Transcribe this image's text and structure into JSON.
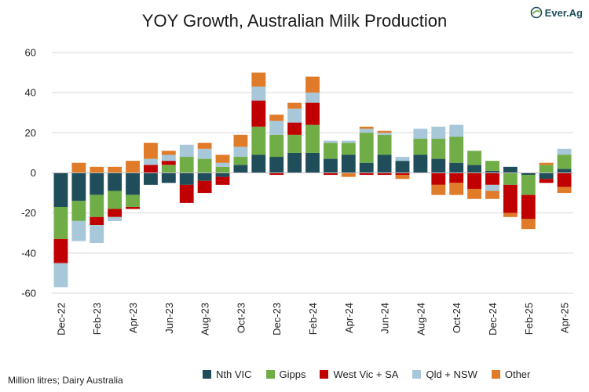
{
  "brand": {
    "name": "Ever.Ag"
  },
  "source_note": "Million litres; Dairy Australia",
  "chart_data": {
    "type": "bar",
    "stacked": true,
    "title": "YOY Growth, Australian Milk Production",
    "xlabel": "",
    "ylabel": "",
    "ylim": [
      -60,
      60
    ],
    "yticks": [
      -60,
      -40,
      -20,
      0,
      20,
      40,
      60
    ],
    "grid": true,
    "legend_position": "bottom",
    "categories": [
      "Dec-22",
      "Jan-23",
      "Feb-23",
      "Mar-23",
      "Apr-23",
      "May-23",
      "Jun-23",
      "Jul-23",
      "Aug-23",
      "Sep-23",
      "Oct-23",
      "Nov-23",
      "Dec-23",
      "Jan-24",
      "Feb-24",
      "Mar-24",
      "Apr-24",
      "May-24",
      "Jun-24",
      "Jul-24",
      "Aug-24",
      "Sep-24",
      "Oct-24",
      "Nov-24",
      "Dec-24",
      "Jan-25",
      "Feb-25",
      "Mar-25",
      "Apr-25"
    ],
    "xtick_labels": [
      "Dec-22",
      "Feb-23",
      "Apr-23",
      "Jun-23",
      "Aug-23",
      "Oct-23",
      "Dec-23",
      "Feb-24",
      "Apr-24",
      "Jun-24",
      "Aug-24",
      "Oct-24",
      "Dec-24",
      "Feb-25",
      "Apr-25"
    ],
    "series": [
      {
        "name": "Nth VIC",
        "color": "#1f4e5a",
        "values": [
          -17,
          -14,
          -11,
          -9,
          -11,
          -6,
          -5,
          -6,
          -4,
          -2,
          4,
          9,
          8,
          10,
          10,
          7,
          9,
          5,
          9,
          6,
          9,
          7,
          5,
          4,
          1,
          3,
          -1,
          -3,
          2
        ]
      },
      {
        "name": "Gipps",
        "color": "#70ad47",
        "values": [
          -16,
          -10,
          -11,
          -9,
          -6,
          0,
          4,
          8,
          7,
          3,
          4,
          14,
          11,
          9,
          14,
          8,
          6,
          15,
          10,
          0,
          8,
          10,
          13,
          7,
          5,
          -6,
          -10,
          4,
          7
        ]
      },
      {
        "name": "West Vic + SA",
        "color": "#c00000",
        "values": [
          -12,
          0,
          -4,
          -4,
          -1,
          4,
          2,
          -9,
          -6,
          -4,
          0,
          13,
          -1,
          6,
          11,
          -1,
          0,
          -1,
          -1,
          -1,
          0,
          -6,
          -5,
          -8,
          -6,
          -14,
          -12,
          -2,
          -7
        ]
      },
      {
        "name": "Qld + NSW",
        "color": "#a8c7d8",
        "values": [
          -12,
          -10,
          -9,
          -2,
          0,
          3,
          3,
          6,
          5,
          2,
          5,
          7,
          7,
          7,
          5,
          1,
          1,
          2,
          1,
          2,
          5,
          6,
          6,
          0,
          -3,
          0,
          0,
          0,
          3
        ]
      },
      {
        "name": "Other",
        "color": "#e07b2a",
        "values": [
          0,
          5,
          3,
          3,
          6,
          8,
          2,
          0,
          3,
          4,
          6,
          7,
          3,
          3,
          8,
          0,
          -2,
          1,
          1,
          -2,
          0,
          -5,
          -6,
          -5,
          -4,
          -2,
          -5,
          1,
          -3
        ]
      }
    ]
  }
}
